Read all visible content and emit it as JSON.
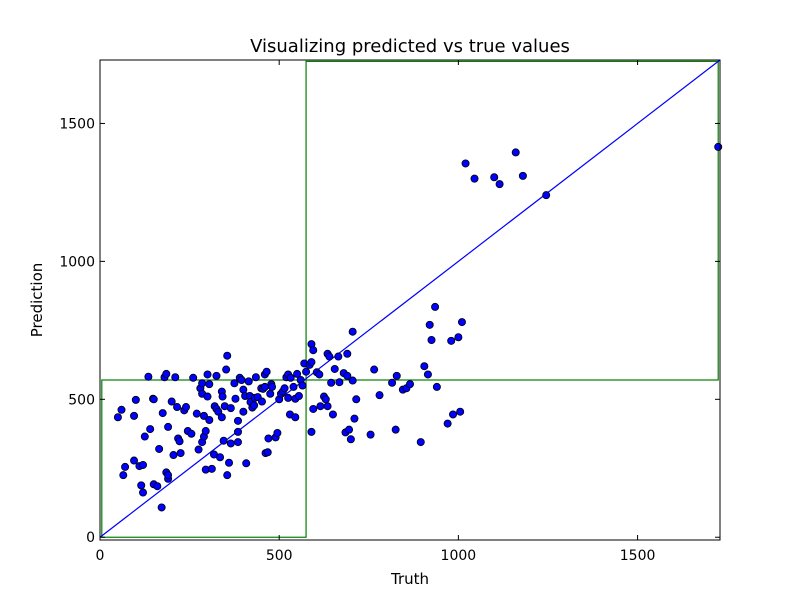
{
  "chart_data": {
    "type": "scatter",
    "title": "Visualizing predicted vs true values",
    "xlabel": "Truth",
    "ylabel": "Prediction",
    "xlim": [
      0,
      1730
    ],
    "ylim": [
      -10,
      1730
    ],
    "xticks": [
      0,
      500,
      1000,
      1500
    ],
    "yticks": [
      0,
      500,
      1000,
      1500
    ],
    "grid": false,
    "colors": {
      "points": "#0000ff",
      "point_edge": "#000000",
      "identity_line": "#0000ff",
      "regions": "#008000"
    },
    "identity_line": {
      "from": [
        0,
        0
      ],
      "to": [
        1730,
        1730
      ]
    },
    "regions": [
      {
        "x": [
          5,
          575
        ],
        "y": [
          0,
          570
        ]
      },
      {
        "x": [
          575,
          1725
        ],
        "y": [
          570,
          1725
        ]
      }
    ],
    "points": [
      [
        50,
        435
      ],
      [
        60,
        462
      ],
      [
        65,
        225
      ],
      [
        70,
        255
      ],
      [
        95,
        440
      ],
      [
        95,
        278
      ],
      [
        100,
        498
      ],
      [
        110,
        258
      ],
      [
        115,
        188
      ],
      [
        120,
        262
      ],
      [
        120,
        162
      ],
      [
        125,
        365
      ],
      [
        135,
        582
      ],
      [
        140,
        392
      ],
      [
        148,
        502
      ],
      [
        150,
        192
      ],
      [
        150,
        500
      ],
      [
        160,
        185
      ],
      [
        165,
        320
      ],
      [
        172,
        108
      ],
      [
        175,
        450
      ],
      [
        180,
        580
      ],
      [
        185,
        235
      ],
      [
        185,
        592
      ],
      [
        190,
        212
      ],
      [
        190,
        400
      ],
      [
        190,
        225
      ],
      [
        200,
        492
      ],
      [
        205,
        298
      ],
      [
        210,
        580
      ],
      [
        215,
        472
      ],
      [
        218,
        358
      ],
      [
        222,
        348
      ],
      [
        225,
        305
      ],
      [
        235,
        460
      ],
      [
        240,
        472
      ],
      [
        245,
        385
      ],
      [
        255,
        375
      ],
      [
        260,
        578
      ],
      [
        270,
        448
      ],
      [
        275,
        318
      ],
      [
        280,
        540
      ],
      [
        285,
        345
      ],
      [
        285,
        558
      ],
      [
        285,
        520
      ],
      [
        290,
        365
      ],
      [
        290,
        440
      ],
      [
        295,
        385
      ],
      [
        295,
        245
      ],
      [
        300,
        590
      ],
      [
        300,
        510
      ],
      [
        305,
        425
      ],
      [
        305,
        555
      ],
      [
        312,
        248
      ],
      [
        318,
        300
      ],
      [
        320,
        475
      ],
      [
        325,
        585
      ],
      [
        325,
        465
      ],
      [
        330,
        455
      ],
      [
        335,
        290
      ],
      [
        340,
        528
      ],
      [
        340,
        435
      ],
      [
        342,
        510
      ],
      [
        345,
        350
      ],
      [
        348,
        475
      ],
      [
        352,
        608
      ],
      [
        355,
        658
      ],
      [
        355,
        225
      ],
      [
        360,
        270
      ],
      [
        365,
        340
      ],
      [
        365,
        468
      ],
      [
        375,
        558
      ],
      [
        378,
        502
      ],
      [
        385,
        345
      ],
      [
        385,
        422
      ],
      [
        385,
        382
      ],
      [
        390,
        578
      ],
      [
        395,
        570
      ],
      [
        400,
        455
      ],
      [
        400,
        535
      ],
      [
        405,
        512
      ],
      [
        408,
        268
      ],
      [
        415,
        565
      ],
      [
        418,
        512
      ],
      [
        420,
        490
      ],
      [
        425,
        470
      ],
      [
        430,
        478
      ],
      [
        432,
        505
      ],
      [
        435,
        580
      ],
      [
        440,
        508
      ],
      [
        450,
        540
      ],
      [
        452,
        492
      ],
      [
        455,
        538
      ],
      [
        460,
        545
      ],
      [
        460,
        590
      ],
      [
        462,
        305
      ],
      [
        465,
        600
      ],
      [
        468,
        308
      ],
      [
        470,
        358
      ],
      [
        475,
        520
      ],
      [
        478,
        555
      ],
      [
        480,
        545
      ],
      [
        490,
        362
      ],
      [
        495,
        378
      ],
      [
        500,
        500
      ],
      [
        505,
        520
      ],
      [
        510,
        528
      ],
      [
        515,
        540
      ],
      [
        520,
        580
      ],
      [
        525,
        505
      ],
      [
        525,
        590
      ],
      [
        530,
        445
      ],
      [
        532,
        578
      ],
      [
        540,
        545
      ],
      [
        545,
        435
      ],
      [
        545,
        502
      ],
      [
        550,
        592
      ],
      [
        555,
        512
      ],
      [
        560,
        570
      ],
      [
        565,
        550
      ],
      [
        570,
        630
      ],
      [
        575,
        600
      ],
      [
        585,
        625
      ],
      [
        590,
        382
      ],
      [
        590,
        700
      ],
      [
        590,
        635
      ],
      [
        595,
        465
      ],
      [
        595,
        678
      ],
      [
        605,
        598
      ],
      [
        612,
        590
      ],
      [
        615,
        475
      ],
      [
        625,
        510
      ],
      [
        630,
        500
      ],
      [
        635,
        475
      ],
      [
        635,
        665
      ],
      [
        640,
        655
      ],
      [
        645,
        560
      ],
      [
        650,
        445
      ],
      [
        655,
        610
      ],
      [
        665,
        655
      ],
      [
        668,
        562
      ],
      [
        680,
        595
      ],
      [
        685,
        380
      ],
      [
        690,
        585
      ],
      [
        690,
        665
      ],
      [
        695,
        390
      ],
      [
        700,
        355
      ],
      [
        705,
        745
      ],
      [
        705,
        568
      ],
      [
        710,
        430
      ],
      [
        715,
        500
      ],
      [
        755,
        372
      ],
      [
        765,
        608
      ],
      [
        780,
        515
      ],
      [
        815,
        560
      ],
      [
        825,
        390
      ],
      [
        828,
        585
      ],
      [
        845,
        535
      ],
      [
        855,
        540
      ],
      [
        865,
        555
      ],
      [
        895,
        345
      ],
      [
        905,
        620
      ],
      [
        915,
        590
      ],
      [
        920,
        770
      ],
      [
        925,
        715
      ],
      [
        935,
        835
      ],
      [
        940,
        545
      ],
      [
        970,
        412
      ],
      [
        980,
        712
      ],
      [
        985,
        445
      ],
      [
        1000,
        725
      ],
      [
        1005,
        455
      ],
      [
        1010,
        780
      ],
      [
        1020,
        1355
      ],
      [
        1045,
        1300
      ],
      [
        1100,
        1305
      ],
      [
        1115,
        1280
      ],
      [
        1160,
        1395
      ],
      [
        1180,
        1310
      ],
      [
        1245,
        1240
      ],
      [
        1725,
        1415
      ]
    ]
  }
}
